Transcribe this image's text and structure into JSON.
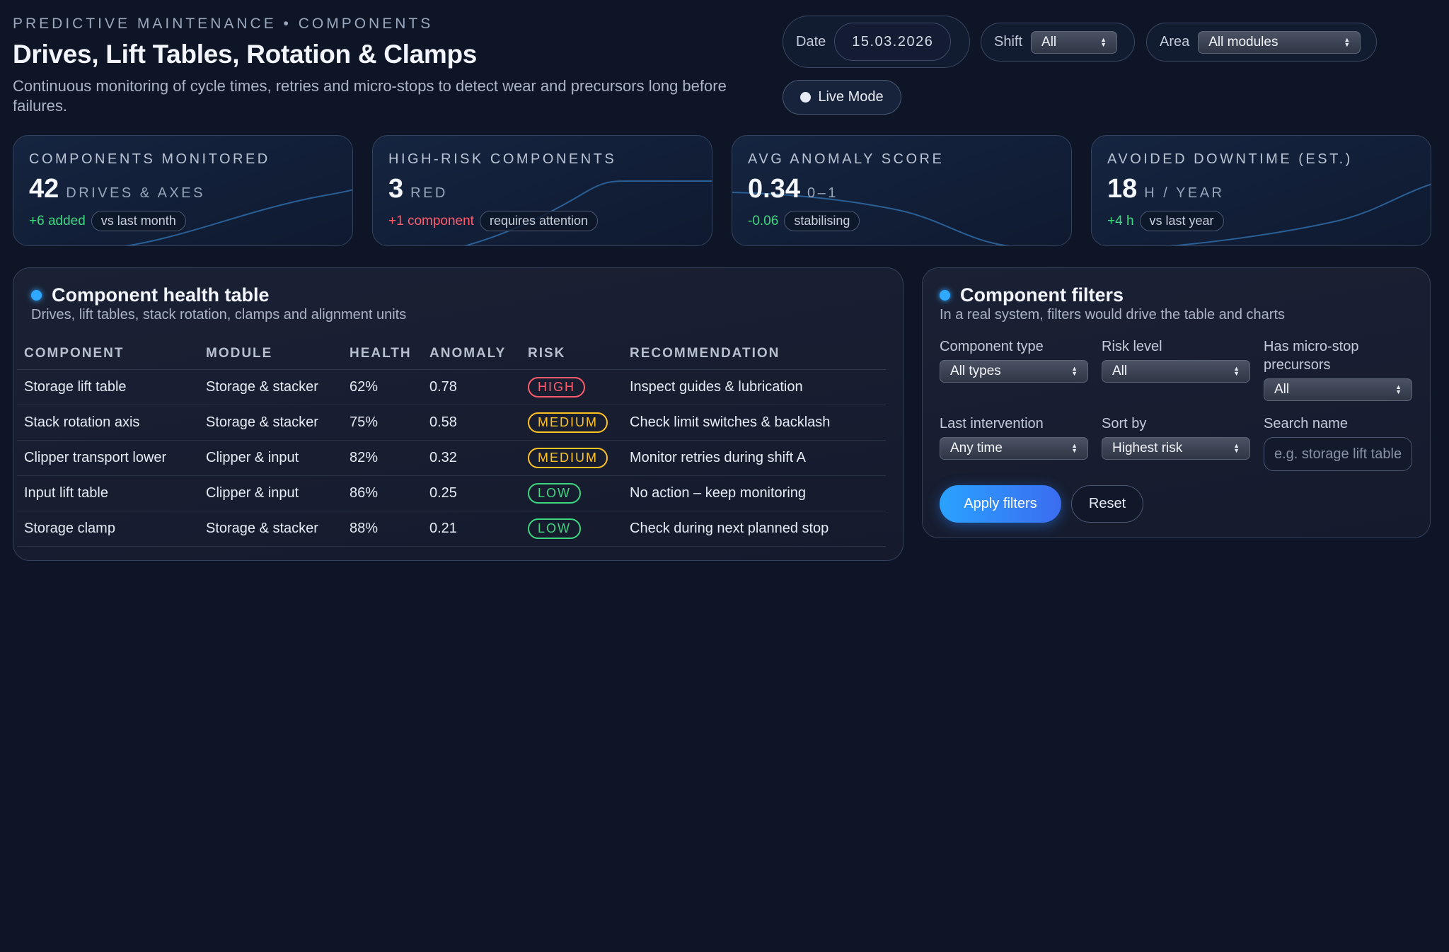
{
  "header": {
    "eyebrow": "PREDICTIVE MAINTENANCE • COMPONENTS",
    "title": "Drives, Lift Tables, Rotation & Clamps",
    "subtitle": "Continuous monitoring of cycle times, retries and micro-stops to detect wear and precursors long before failures."
  },
  "controls": {
    "date_label": "Date",
    "date_value": "15.03.2026",
    "shift_label": "Shift",
    "shift_value": "All",
    "area_label": "Area",
    "area_value": "All modules",
    "live_mode_label": "Live Mode"
  },
  "kpis": [
    {
      "label": "COMPONENTS MONITORED",
      "value": "42",
      "unit": "DRIVES & AXES",
      "delta": "+6 added",
      "delta_tone": "green",
      "chip": "vs last month"
    },
    {
      "label": "HIGH-RISK COMPONENTS",
      "value": "3",
      "unit": "RED",
      "delta": "+1 component",
      "delta_tone": "red",
      "chip": "requires attention"
    },
    {
      "label": "AVG ANOMALY SCORE",
      "value": "0.34",
      "unit": "0–1",
      "delta": "-0.06",
      "delta_tone": "green",
      "chip": "stabilising"
    },
    {
      "label": "AVOIDED DOWNTIME (EST.)",
      "value": "18",
      "unit": "H / YEAR",
      "delta": "+4 h",
      "delta_tone": "green",
      "chip": "vs last year"
    }
  ],
  "health_table": {
    "title": "Component health table",
    "subtitle": "Drives, lift tables, stack rotation, clamps and alignment units",
    "columns": [
      "COMPONENT",
      "MODULE",
      "HEALTH",
      "ANOMALY",
      "RISK",
      "RECOMMENDATION"
    ],
    "rows": [
      {
        "component": "Storage lift table",
        "module": "Storage & stacker",
        "health": "62%",
        "anomaly": "0.78",
        "risk": "HIGH",
        "recommendation": "Inspect guides & lubrication"
      },
      {
        "component": "Stack rotation axis",
        "module": "Storage & stacker",
        "health": "75%",
        "anomaly": "0.58",
        "risk": "MEDIUM",
        "recommendation": "Check limit switches & backlash"
      },
      {
        "component": "Clipper transport lower",
        "module": "Clipper & input",
        "health": "82%",
        "anomaly": "0.32",
        "risk": "MEDIUM",
        "recommendation": "Monitor retries during shift A"
      },
      {
        "component": "Input lift table",
        "module": "Clipper & input",
        "health": "86%",
        "anomaly": "0.25",
        "risk": "LOW",
        "recommendation": "No action – keep monitoring"
      },
      {
        "component": "Storage clamp",
        "module": "Storage & stacker",
        "health": "88%",
        "anomaly": "0.21",
        "risk": "LOW",
        "recommendation": "Check during next planned stop"
      }
    ]
  },
  "filters": {
    "title": "Component filters",
    "subtitle": "In a real system, filters would drive the table and charts",
    "component_type_label": "Component type",
    "component_type_value": "All types",
    "risk_level_label": "Risk level",
    "risk_level_value": "All",
    "micro_stop_label": "Has micro-stop precursors",
    "micro_stop_value": "All",
    "last_intervention_label": "Last intervention",
    "last_intervention_value": "Any time",
    "sort_by_label": "Sort by",
    "sort_by_value": "Highest risk",
    "search_label": "Search name",
    "search_placeholder": "e.g. storage lift table",
    "apply_label": "Apply filters",
    "reset_label": "Reset"
  }
}
